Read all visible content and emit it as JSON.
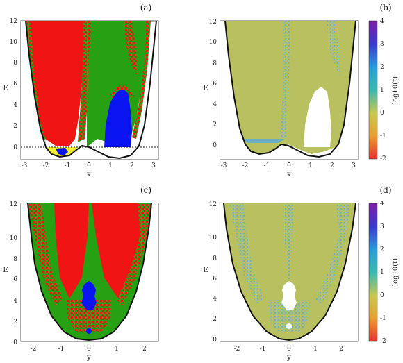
{
  "panels": [
    {
      "label": "(a)",
      "xlabel": "x",
      "ylabel": "E",
      "xticks": [
        "-3",
        "-2",
        "-1",
        "0",
        "1",
        "2",
        "3"
      ],
      "yticks": [
        "0",
        "2",
        "4",
        "6",
        "8",
        "10",
        "12"
      ]
    },
    {
      "label": "(b)",
      "xlabel": "x",
      "ylabel": "E",
      "xticks": [
        "-3",
        "-2",
        "-1",
        "0",
        "1",
        "2",
        "3"
      ],
      "yticks": [
        "0",
        "2",
        "4",
        "6",
        "8",
        "10",
        "12"
      ],
      "colorbar": {
        "label": "log10(t)",
        "ticks": [
          "4",
          "3",
          "2",
          "1",
          "0",
          "-1",
          "-2"
        ]
      }
    },
    {
      "label": "(c)",
      "xlabel": "y",
      "ylabel": "E",
      "xticks": [
        "-2",
        "-1",
        "0",
        "1",
        "2"
      ],
      "yticks": [
        "0",
        "2",
        "4",
        "6",
        "8",
        "10",
        "12"
      ]
    },
    {
      "label": "(d)",
      "xlabel": "y",
      "ylabel": "E",
      "xticks": [
        "-2",
        "-1",
        "0",
        "1",
        "2"
      ],
      "yticks": [
        "0",
        "2",
        "4",
        "6",
        "8",
        "10",
        "12"
      ],
      "colorbar": {
        "label": "log10(t)",
        "ticks": [
          "4",
          "3",
          "2",
          "1",
          "0",
          "-1",
          "-2"
        ]
      }
    }
  ],
  "colors": {
    "red": "#f01414",
    "green": "#28a014",
    "blue": "#0a14f0",
    "yellow": "#f2f02a",
    "olive": "#b8c060",
    "teal": "#6aaec8",
    "colorbar_stops": [
      "#7c1fa0",
      "#3a3ad0",
      "#2a9ed8",
      "#3ab8b0",
      "#c8c850",
      "#e8a030",
      "#e83030"
    ]
  },
  "chart_data": [
    {
      "type": "heatmap",
      "panel": "(a)",
      "title": "",
      "xlabel": "x",
      "ylabel": "E",
      "xlim": [
        -3.2,
        3.2
      ],
      "ylim": [
        -1.2,
        12.2
      ],
      "grid": false,
      "categories_shown": [
        "red",
        "green",
        "blue",
        "yellow"
      ],
      "boundary": "potential curve E = V(x), minima near x = -1.4 and x = 1.2, local max at x = 0",
      "energy_line": 0
    },
    {
      "type": "heatmap",
      "panel": "(b)",
      "title": "",
      "xlabel": "x",
      "ylabel": "E",
      "xlim": [
        -3.2,
        3.2
      ],
      "ylim": [
        -1.2,
        12.2
      ],
      "grid": false,
      "colorbar": {
        "label": "log10(t)",
        "range": [
          -2,
          4
        ]
      }
    },
    {
      "type": "heatmap",
      "panel": "(c)",
      "title": "",
      "xlabel": "y",
      "ylabel": "E",
      "xlim": [
        -2.5,
        2.5
      ],
      "ylim": [
        -0.3,
        12.2
      ],
      "grid": false,
      "boundary": "parabola E = 2 y^2"
    },
    {
      "type": "heatmap",
      "panel": "(d)",
      "title": "",
      "xlabel": "y",
      "ylabel": "E",
      "xlim": [
        -2.5,
        2.5
      ],
      "ylim": [
        -0.3,
        12.2
      ],
      "grid": false,
      "colorbar": {
        "label": "log10(t)",
        "range": [
          -2,
          4
        ]
      }
    }
  ]
}
